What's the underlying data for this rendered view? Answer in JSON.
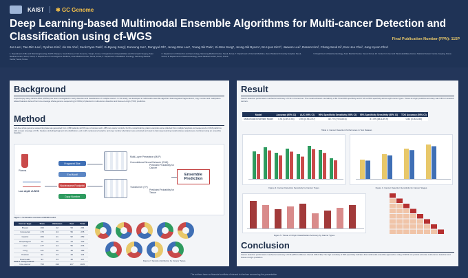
{
  "header": {
    "logos": [
      "KAIST",
      "GC Genome"
    ],
    "title": "Deep Learning-based Multimodal Ensemble Algorithms for Multi-cancer Detection and Classification using cf-WGS",
    "publication_number": "Final Publication Number (FPN): 115P",
    "authors": "Jun Lee¹, Tae-Rim Lee², Gyuhee Kim², Jin Mo Ahn², Seok Ryun Park², Ki-Byung Song³, Eunsung Jun⁴, Dongryul Oh⁵, Jeong-Won Lee⁶, Young Sik Park⁷, Ki-Won Song⁸, Jeong-Sik Byeon⁹, Bo Hyun Kim¹⁰, Jaewon Lee², Dasom Kim², Chang-Seok Ki², Eun Hee Cho², Jung Kyoon Choi¹",
    "affiliations": [
      "1. Department of Bio and Brain Engineering, KAIST, Daejeon, South Korea; 2. GC Genome, Yongin, Korea; 3. Department of Hepatobiliary and Pancreatic Surgery, Asan Medical Center, Seoul, Korea; 4. Department of Convergence Medicine, Asan Medical Center, Seoul, Korea; 5. Department of Radiation Oncology, Samsung Medical Center, Seoul, Korea",
      "6. Department of Obstetrics and Gynecology, Samsung Medical Center, Seoul, Korea; 7. Department of Internal Medicine, Seoul National University Hospital, Seoul, Korea; 8. Department of Gastroenterology, Asan Medical Center, Seoul, Korea",
      "9. Department of Gastroenterology, Asan Medical Center, Seoul, Korea; 10. Center for Liver and Pancreatobiliary Cancer, National Cancer Center, Goyang, Korea"
    ]
  },
  "background": {
    "heading": "Background",
    "text": "Liquid biopsy using cell-free DNA (cfDNA) has been investigated for early detection and classification of multiple cancers. In this study, we developed a multimodal ensemble algorithm that integrates fragmentomic, copy number and methylation-related features derived from low-coverage whole-genome sequencing (cf-WGS) of plasma for multi-cancer detection and tissue-of-origin (TOO) prediction."
  },
  "method": {
    "heading": "Method",
    "text": "Cell-free whole genome sequencing data was generated from 1,680 patients with 8 types of cancer and 1,185 non-cancer controls. For the model training, plasma samples were collected from multiple hospitals and sequenced on NGS platforms with a mean coverage of 0.5x. Features including fragment size distribution, end motif, nucleosome footprint, and copy number aberration were extracted and used to train deep learning models whose outputs were combined using an ensemble classifier.",
    "diagram": {
      "inputs": [
        "Plasma",
        "Low depth cf-WGS"
      ],
      "features": [
        "Fragment Size",
        "End Motif",
        "Nucleosome Footprint",
        "Copy Number"
      ],
      "models": [
        "Multi-Layer Perceptron (MLP)",
        "Convolutional Neural Network (CNN)",
        "Transformer (TF)"
      ],
      "outputs": [
        "Predicted Probability for Cancer",
        "Predicted Probability for Tissue"
      ],
      "ensemble": "Ensemble Prediction"
    },
    "figure1_caption": "Figure 1. Schematic overview of MCED model.",
    "table": {
      "headers": [
        "Cancer Type",
        "Train",
        "Validation",
        "Test",
        "Total"
      ],
      "rows": [
        [
          "Breast",
          "169",
          "42",
          "53",
          "264"
        ],
        [
          "Colorectal",
          "178",
          "44",
          "56",
          "278"
        ],
        [
          "Gastric",
          "166",
          "41",
          "52",
          "259"
        ],
        [
          "Esophageal",
          "79",
          "20",
          "24",
          "123"
        ],
        [
          "Liver",
          "177",
          "44",
          "55",
          "276"
        ],
        [
          "Lung",
          "121",
          "30",
          "38",
          "189"
        ],
        [
          "Ovarian",
          "92",
          "23",
          "29",
          "144"
        ],
        [
          "Pancreatic",
          "94",
          "23",
          "30",
          "147"
        ],
        [
          "Non-cancer",
          "758",
          "190",
          "237",
          "1185"
        ]
      ],
      "caption": "Table 1. Study dataset."
    },
    "figure2_caption": "Figure 2. Sample distribution by Cancer Types."
  },
  "result": {
    "heading": "Result",
    "text": "Cancer detection performance reached an accuracy of 0.91 in the test set. The model achieved a sensitivity of 82.7% at 99% specificity and 87.4% at 95% specificity across eight cancer types. Tissue-of-origin prediction accuracy was 0.83 for detected cancers.",
    "table": {
      "headers": [
        "Model",
        "Accuracy (95% CI)",
        "AUC (95% CI)",
        "99% Specificity Sensitivity (95% CI)",
        "95% Specificity Sensitivity (95% CI)",
        "TOO Accuracy (95% CI)"
      ],
      "row_label": "Multi-modal Ensemble Model",
      "values": [
        "0.91 (0.89-0.93)",
        "0.96 (0.95-0.97)",
        "82.7% (79.5-85.6)",
        "87.4% (84.6-89.9)",
        "0.83 (0.80-0.86)"
      ]
    },
    "table2_caption": "Table 2. Cancer Detection Performance in Test Dataset.",
    "figure3_caption": "Figure 3. Cancer Detection Sensitivity by Cancer Types",
    "figure4_caption": "Figure 4. Cancer Detection Sensitivity by Cancer Stages",
    "figure5_caption": "Figure 5. Tissue of Origin Classification Accuracy by Cancer Types"
  },
  "conclusion": {
    "heading": "Conclusion",
    "text": "Cancer detection performance reached an accuracy of 0.91 (95% confidence interval 0.89-0.93). The high sensitivity at 99% specificity indicates that multimodal ensemble approaches using cf-WGS can provide accurate multi-cancer detection and tissue-of-origin prediction."
  },
  "footer": "The authors have no financial conflicts of interest to disclose concerning the presentation."
}
